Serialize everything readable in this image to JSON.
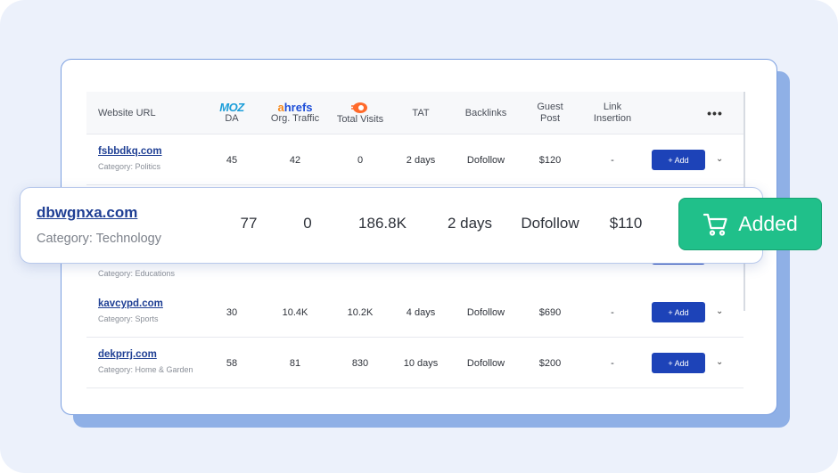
{
  "header": {
    "website_url": "Website URL",
    "moz_logo": "MOZ",
    "da": "DA",
    "ahrefs_logo_a": "a",
    "ahrefs_logo_rest": "hrefs",
    "org_traffic": "Org. Traffic",
    "total_visits": "Total Visits",
    "tat": "TAT",
    "backlinks": "Backlinks",
    "guest_post_1": "Guest",
    "guest_post_2": "Post",
    "link_insertion_1": "Link",
    "link_insertion_2": "Insertion",
    "more": "•••"
  },
  "rows": [
    {
      "site": "fsbbdkq.com",
      "category": "Category: Politics",
      "da": "45",
      "org_traffic": "42",
      "total_visits": "0",
      "tat": "2 days",
      "backlinks": "Dofollow",
      "guest_post": "$120",
      "link_insertion": "-",
      "button": "+ Add"
    },
    {
      "site": "",
      "category": "Category: Educations",
      "da": "",
      "org_traffic": "",
      "total_visits": "",
      "tat": "",
      "backlinks": "",
      "guest_post": "",
      "link_insertion": "",
      "button": ""
    },
    {
      "site": "kavcypd.com",
      "category": "Category: Sports",
      "da": "30",
      "org_traffic": "10.4K",
      "total_visits": "10.2K",
      "tat": "4 days",
      "backlinks": "Dofollow",
      "guest_post": "$690",
      "link_insertion": "-",
      "button": "+ Add"
    },
    {
      "site": "dekprrj.com",
      "category": "Category: Home & Garden",
      "da": "58",
      "org_traffic": "81",
      "total_visits": "830",
      "tat": "10 days",
      "backlinks": "Dofollow",
      "guest_post": "$200",
      "link_insertion": "-",
      "button": "+ Add"
    }
  ],
  "highlight": {
    "site": "dbwgnxa.com",
    "category": "Category: Technology",
    "da": "77",
    "org_traffic": "0",
    "total_visits": "186.8K",
    "tat": "2 days",
    "backlinks": "Dofollow",
    "guest_post": "$110"
  },
  "added_button": {
    "label": "Added",
    "icon": "cart-icon"
  },
  "colors": {
    "accent": "#1d43b8",
    "success": "#20c08a",
    "link": "#1f3f94"
  }
}
